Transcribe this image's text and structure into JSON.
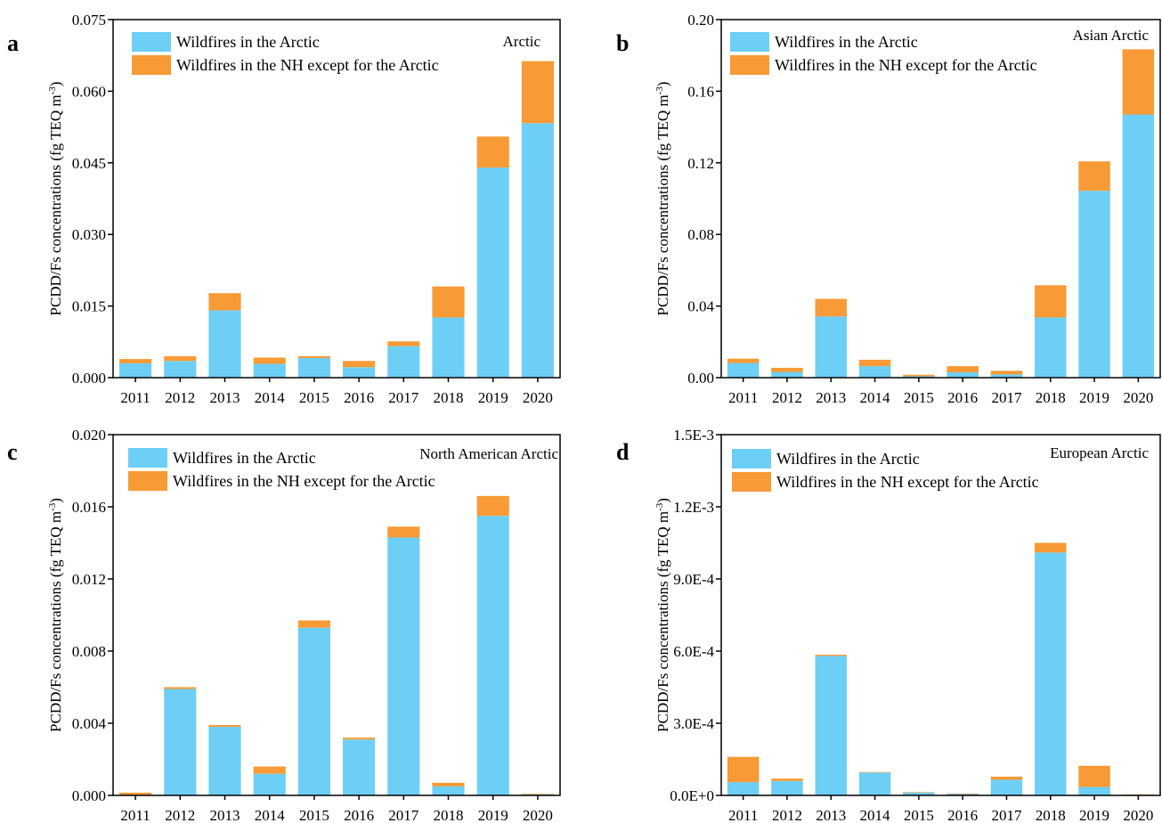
{
  "colors": {
    "arctic": "#6ECFF6",
    "nh_except_arctic": "#F89A35",
    "axis": "#000000"
  },
  "chart_data": [
    {
      "type": "bar",
      "stacked": true,
      "panel_label": "a",
      "region_label": "Arctic",
      "ylabel": "PCDD/Fs concentrations (fg TEQ m",
      "ylabel_unit_exponent": "-3",
      "ylabel_close": ")",
      "categories": [
        "2011",
        "2012",
        "2013",
        "2014",
        "2015",
        "2016",
        "2017",
        "2018",
        "2019",
        "2020"
      ],
      "ylim": [
        0,
        0.075
      ],
      "yticks": [
        "0.000",
        "0.015",
        "0.030",
        "0.045",
        "0.060",
        "0.075"
      ],
      "legend": [
        "Wildfires in the Arctic",
        "Wildfires in the NH except for the Arctic"
      ],
      "series": [
        {
          "name": "Wildfires in the Arctic",
          "values": [
            0.003,
            0.0035,
            0.0141,
            0.0029,
            0.0041,
            0.0022,
            0.0066,
            0.0126,
            0.044,
            0.0533
          ]
        },
        {
          "name": "Wildfires in the NH except for the Arctic",
          "values": [
            0.0009,
            0.001,
            0.0036,
            0.0013,
            0.0004,
            0.0013,
            0.001,
            0.0065,
            0.0065,
            0.013
          ]
        }
      ]
    },
    {
      "type": "bar",
      "stacked": true,
      "panel_label": "b",
      "region_label": "Asian Arctic",
      "ylabel": "PCDD/Fs concentrations (fg TEQ m",
      "ylabel_unit_exponent": "-3",
      "ylabel_close": ")",
      "categories": [
        "2011",
        "2012",
        "2013",
        "2014",
        "2015",
        "2016",
        "2017",
        "2018",
        "2019",
        "2020"
      ],
      "ylim": [
        0,
        0.2
      ],
      "yticks": [
        "0.00",
        "0.04",
        "0.08",
        "0.12",
        "0.16",
        "0.20"
      ],
      "legend": [
        "Wildfires in the Arctic",
        "Wildfires in the NH except for the Arctic"
      ],
      "series": [
        {
          "name": "Wildfires in the Arctic",
          "values": [
            0.0082,
            0.0032,
            0.0342,
            0.0064,
            0.0008,
            0.003,
            0.0018,
            0.0336,
            0.1044,
            0.147
          ]
        },
        {
          "name": "Wildfires in the NH except for the Arctic",
          "values": [
            0.0024,
            0.0023,
            0.0098,
            0.0036,
            0.0008,
            0.0034,
            0.002,
            0.018,
            0.0164,
            0.0364
          ]
        }
      ]
    },
    {
      "type": "bar",
      "stacked": true,
      "panel_label": "c",
      "region_label": "North American Arctic",
      "ylabel": "PCDD/Fs concentrations (fg TEQ m",
      "ylabel_unit_exponent": "-3",
      "ylabel_close": ")",
      "categories": [
        "2011",
        "2012",
        "2013",
        "2014",
        "2015",
        "2016",
        "2017",
        "2018",
        "2019",
        "2020"
      ],
      "ylim": [
        0,
        0.02
      ],
      "yticks": [
        "0.000",
        "0.004",
        "0.008",
        "0.012",
        "0.016",
        "0.020"
      ],
      "legend": [
        "Wildfires in the Arctic",
        "Wildfires in the NH except for the Arctic"
      ],
      "series": [
        {
          "name": "Wildfires in the Arctic",
          "values": [
            3e-05,
            0.0059,
            0.0038,
            0.0012,
            0.0093,
            0.0031,
            0.0143,
            0.0005,
            0.0155,
            5e-05
          ]
        },
        {
          "name": "Wildfires in the NH except for the Arctic",
          "values": [
            0.00012,
            0.0001,
            0.0001,
            0.0004,
            0.0004,
            0.0001,
            0.0006,
            0.0002,
            0.0011,
            3e-05
          ]
        }
      ]
    },
    {
      "type": "bar",
      "stacked": true,
      "panel_label": "d",
      "region_label": "European Arctic",
      "ylabel": "PCDD/Fs concentrations (fg TEQ m",
      "ylabel_unit_exponent": "-3",
      "ylabel_close": ")",
      "categories": [
        "2011",
        "2012",
        "2013",
        "2014",
        "2015",
        "2016",
        "2017",
        "2018",
        "2019",
        "2020"
      ],
      "ylim": [
        0,
        0.0015
      ],
      "yticks": [
        "0.0E+0",
        "3.0E-4",
        "6.0E-4",
        "9.0E-4",
        "1.2E-3",
        "1.5E-3"
      ],
      "legend": [
        "Wildfires in the Arctic",
        "Wildfires in the NH except for the Arctic"
      ],
      "series": [
        {
          "name": "Wildfires in the Arctic",
          "values": [
            5.5e-05,
            6e-05,
            0.00058,
            9.5e-05,
            1.2e-05,
            6e-06,
            6.5e-05,
            0.00101,
            3.5e-05,
            2e-06
          ]
        },
        {
          "name": "Wildfires in the NH except for the Arctic",
          "values": [
            0.000105,
            1e-05,
            5e-06,
            2e-06,
            2e-06,
            2e-06,
            1.3e-05,
            4e-05,
            8.8e-05,
            2e-06
          ]
        }
      ]
    }
  ]
}
